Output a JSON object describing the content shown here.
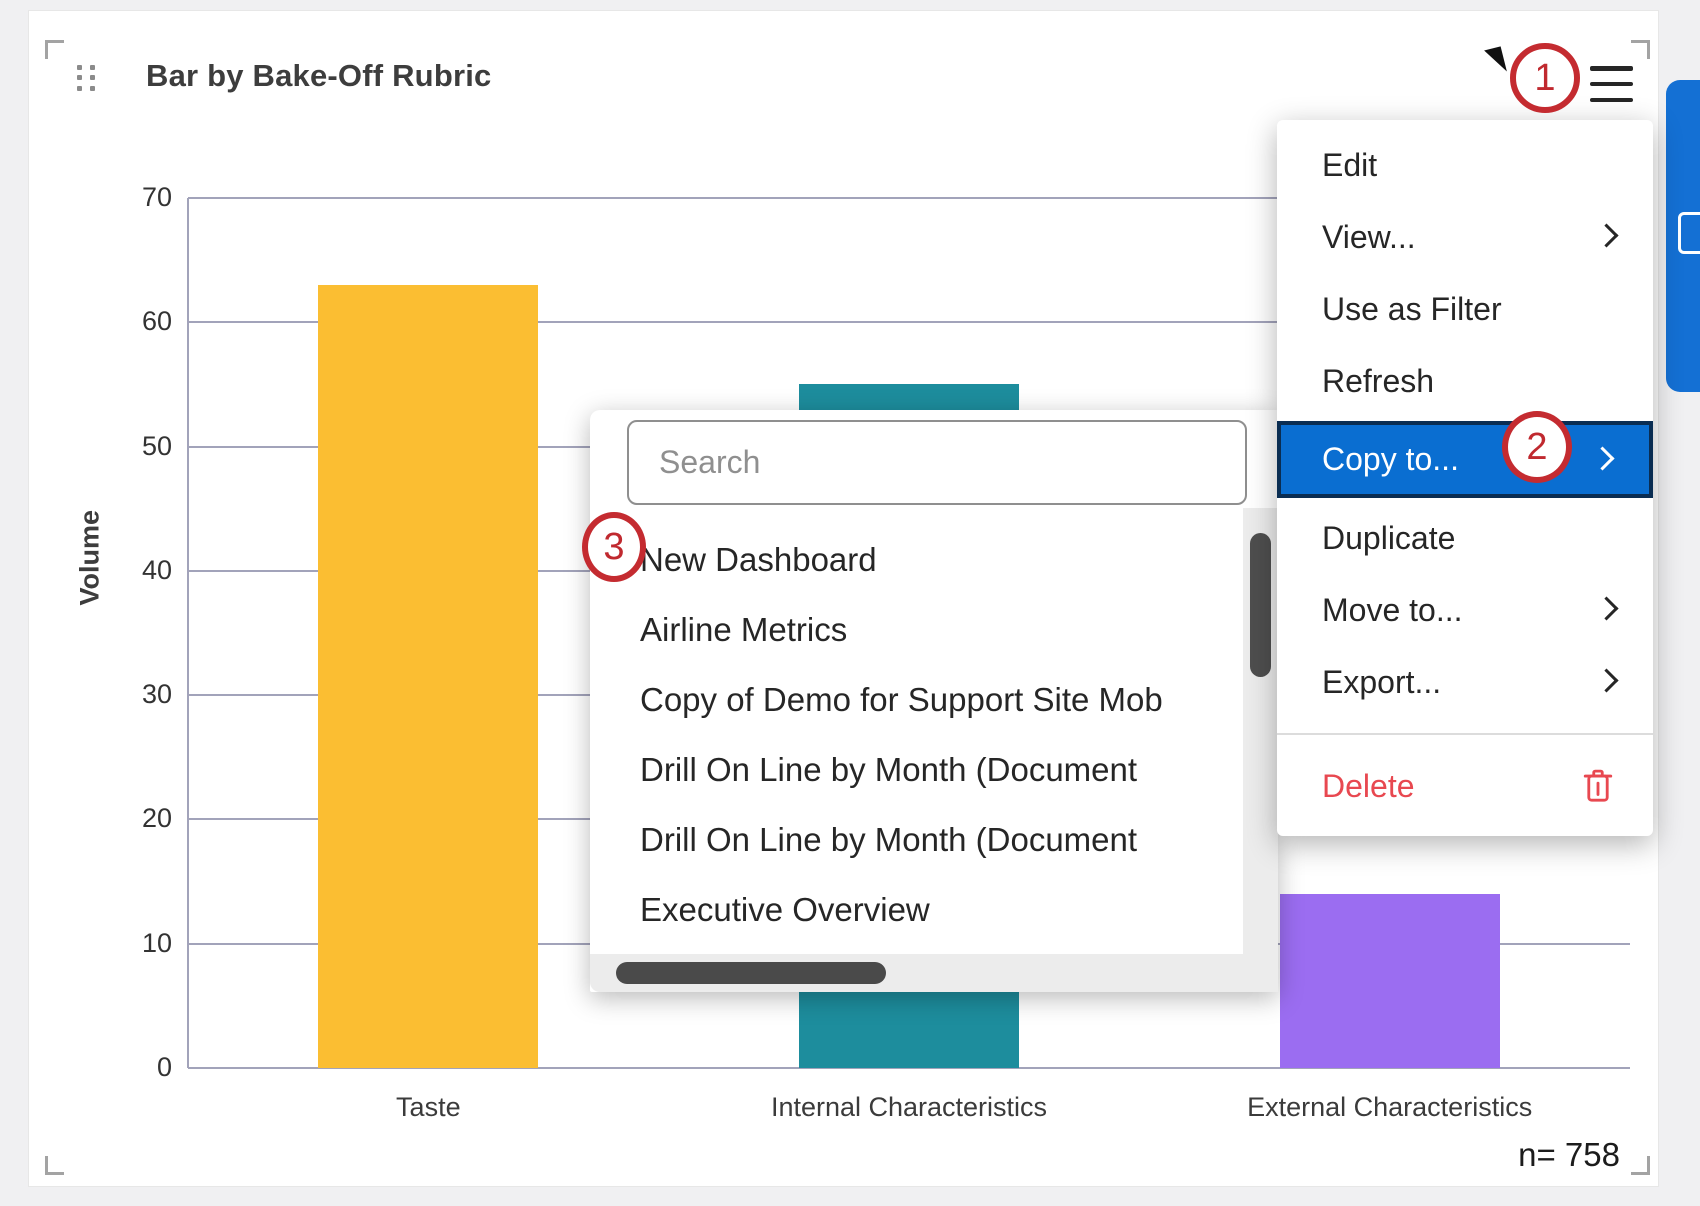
{
  "widget": {
    "title": "Bar by Bake-Off Rubric",
    "sample_size": "n= 758"
  },
  "context_menu": {
    "items": [
      {
        "label": "Edit"
      },
      {
        "label": "View...",
        "submenu": true
      },
      {
        "label": "Use as Filter"
      },
      {
        "label": "Refresh"
      },
      {
        "label": "Copy to...",
        "submenu": true,
        "highlighted": true
      },
      {
        "label": "Duplicate"
      },
      {
        "label": "Move to...",
        "submenu": true
      },
      {
        "label": "Export...",
        "submenu": true
      },
      {
        "label": "Delete",
        "danger": true,
        "icon": "trash",
        "divider_above": true
      }
    ]
  },
  "copy_to_submenu": {
    "search_placeholder": "Search",
    "search_value": "",
    "items": [
      "New Dashboard",
      "Airline Metrics",
      "Copy of Demo for Support Site Mob",
      "Drill On Line by Month (Document",
      "Drill On Line by Month (Document",
      "Executive Overview"
    ]
  },
  "annotations": {
    "step_1": "1",
    "step_2": "2",
    "step_3": "3"
  },
  "chart_data": {
    "type": "bar",
    "title": "Bar by Bake-Off Rubric",
    "categories": [
      "Taste",
      "Internal Characteristics",
      "External Characteristics"
    ],
    "values": [
      63,
      55,
      14
    ],
    "bar_colors": [
      "#FBBE32",
      "#1D8D9D",
      "#9B6DF1"
    ],
    "xlabel": "",
    "ylabel": "Volume",
    "ylim": [
      0,
      70
    ],
    "ytick_step": 10,
    "grid": true,
    "legend": "none",
    "sample_size": "n= 758"
  },
  "colors": {
    "highlight_blue": "#0A6ED1",
    "highlight_border": "#0A2D52",
    "danger_red": "#E84850",
    "annotation_red": "#C42B30",
    "gridline": "#A2A3BA",
    "side_panel_blue": "#1470D4"
  }
}
